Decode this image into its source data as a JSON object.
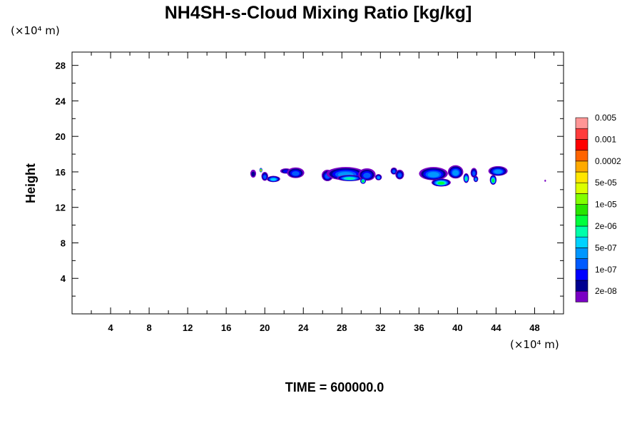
{
  "chart_data": {
    "type": "heatmap",
    "title": "NH4SH-s-Cloud Mixing Ratio [kg/kg]",
    "ylabel": "Height",
    "x_unit_label": "(×10⁴ m)",
    "y_unit_label": "(×10⁴ m)",
    "xlim": [
      0,
      51
    ],
    "ylim": [
      0,
      29.5
    ],
    "x_ticks": [
      4,
      8,
      12,
      16,
      20,
      24,
      28,
      32,
      36,
      40,
      44,
      48
    ],
    "x_tick_labels": [
      "4",
      "8",
      "12",
      "16",
      "20",
      "24",
      "28",
      "32",
      "36",
      "40",
      "44",
      "48"
    ],
    "y_ticks": [
      4,
      8,
      12,
      16,
      20,
      24,
      28
    ],
    "y_tick_labels": [
      "4",
      "8",
      "12",
      "16",
      "20",
      "24",
      "28"
    ],
    "grid": false,
    "colorbar": {
      "colors": [
        "#7a00c4",
        "#000090",
        "#0000ff",
        "#005aff",
        "#0096ff",
        "#00d2ff",
        "#00ffaa",
        "#00ff3c",
        "#28e600",
        "#82ff00",
        "#dcff00",
        "#ffe600",
        "#ffaa00",
        "#ff6400",
        "#ff0000",
        "#ff3c3c",
        "#ff9696"
      ],
      "labels": [
        "2e-08",
        "1e-07",
        "5e-07",
        "2e-06",
        "1e-05",
        "5e-05",
        "0.0002",
        "0.001",
        "0.005"
      ]
    },
    "cloud_patches": [
      {
        "x": 18.8,
        "y": 15.8,
        "rx": 0.3,
        "ry": 0.45,
        "level": 1
      },
      {
        "x": 19.6,
        "y": 16.2,
        "rx": 0.15,
        "ry": 0.25,
        "level": 12
      },
      {
        "x": 20.0,
        "y": 15.5,
        "rx": 0.35,
        "ry": 0.5,
        "level": 3
      },
      {
        "x": 20.9,
        "y": 15.2,
        "rx": 0.7,
        "ry": 0.35,
        "level": 5
      },
      {
        "x": 22.2,
        "y": 16.1,
        "rx": 0.6,
        "ry": 0.3,
        "level": 2
      },
      {
        "x": 23.2,
        "y": 15.9,
        "rx": 0.9,
        "ry": 0.6,
        "level": 3
      },
      {
        "x": 26.5,
        "y": 15.6,
        "rx": 0.6,
        "ry": 0.65,
        "level": 3
      },
      {
        "x": 28.4,
        "y": 15.8,
        "rx": 2.0,
        "ry": 0.75,
        "level": 4
      },
      {
        "x": 28.8,
        "y": 15.3,
        "rx": 1.3,
        "ry": 0.35,
        "level": 6
      },
      {
        "x": 30.6,
        "y": 15.7,
        "rx": 0.9,
        "ry": 0.7,
        "level": 3
      },
      {
        "x": 30.2,
        "y": 15.0,
        "rx": 0.3,
        "ry": 0.35,
        "level": 7
      },
      {
        "x": 31.8,
        "y": 15.4,
        "rx": 0.35,
        "ry": 0.35,
        "level": 4
      },
      {
        "x": 33.4,
        "y": 16.1,
        "rx": 0.35,
        "ry": 0.4,
        "level": 3
      },
      {
        "x": 34.0,
        "y": 15.7,
        "rx": 0.45,
        "ry": 0.55,
        "level": 3
      },
      {
        "x": 37.5,
        "y": 15.8,
        "rx": 1.5,
        "ry": 0.75,
        "level": 4
      },
      {
        "x": 38.3,
        "y": 14.8,
        "rx": 1.0,
        "ry": 0.45,
        "level": 7
      },
      {
        "x": 39.8,
        "y": 16.0,
        "rx": 0.8,
        "ry": 0.75,
        "level": 4
      },
      {
        "x": 40.9,
        "y": 15.3,
        "rx": 0.3,
        "ry": 0.55,
        "level": 6
      },
      {
        "x": 41.7,
        "y": 15.9,
        "rx": 0.35,
        "ry": 0.55,
        "level": 3
      },
      {
        "x": 41.9,
        "y": 15.2,
        "rx": 0.25,
        "ry": 0.35,
        "level": 4
      },
      {
        "x": 44.2,
        "y": 16.1,
        "rx": 1.0,
        "ry": 0.55,
        "level": 4
      },
      {
        "x": 43.7,
        "y": 15.1,
        "rx": 0.35,
        "ry": 0.55,
        "level": 7
      },
      {
        "x": 49.1,
        "y": 15.0,
        "rx": 0.08,
        "ry": 0.12,
        "level": 0
      }
    ]
  },
  "footer": {
    "time_label": "TIME = 600000.0"
  }
}
